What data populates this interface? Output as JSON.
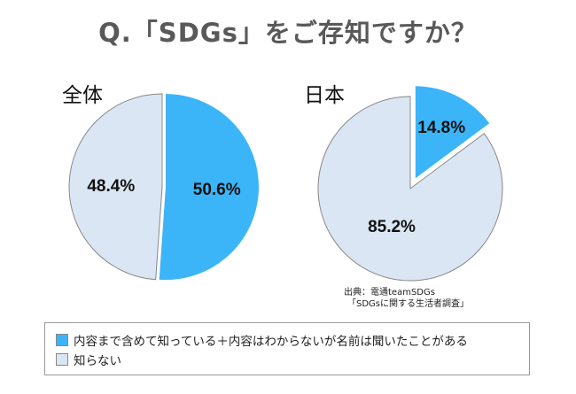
{
  "title": "Q.「SDGs」をご存知ですか？",
  "source": {
    "line1": "出典：電通teamSDGs",
    "line2": "「SDGsに関する生活者調査」"
  },
  "colors": {
    "aware": "#3bb5f8",
    "unaware": "#dae6f3",
    "stroke": "#888888"
  },
  "legend": [
    {
      "label": "内容まで含めて知っている＋内容はわからないが名前は聞いたことがある",
      "color": "#3bb5f8"
    },
    {
      "label": "知らない",
      "color": "#dae6f3"
    }
  ],
  "chart_data": [
    {
      "type": "pie",
      "title": "全体",
      "slices": [
        {
          "label": "50.6%",
          "value": 50.6,
          "color": "#3bb5f8",
          "exploded": true
        },
        {
          "label": "48.4%",
          "value": 48.4,
          "color": "#dae6f3"
        }
      ]
    },
    {
      "type": "pie",
      "title": "日本",
      "slices": [
        {
          "label": "14.8%",
          "value": 14.8,
          "color": "#3bb5f8",
          "exploded": true
        },
        {
          "label": "85.2%",
          "value": 85.2,
          "color": "#dae6f3"
        }
      ]
    }
  ]
}
